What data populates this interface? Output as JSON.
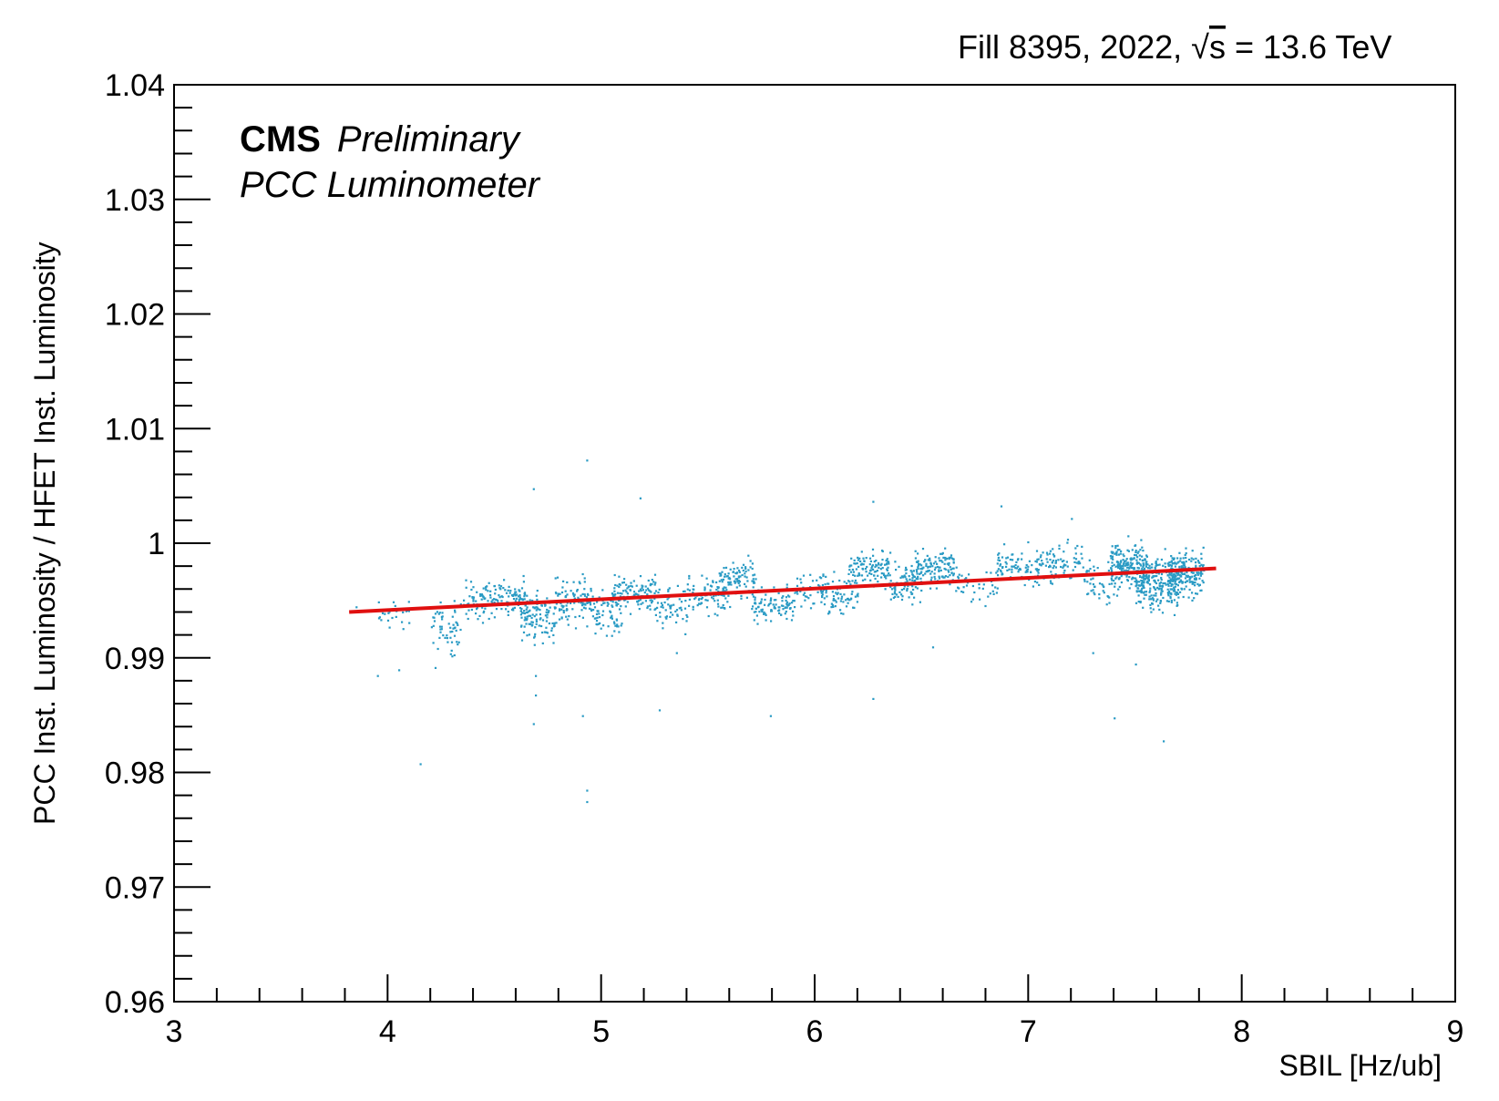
{
  "header": {
    "fill_text": "Fill 8395, 2022, ",
    "sqrt_symbol": "√",
    "sqrt_arg": "s",
    "energy_text": " = 13.6 TeV"
  },
  "annotation": {
    "experiment": "CMS",
    "status": "Preliminary",
    "detector": "PCC Luminometer"
  },
  "colors": {
    "scatter": "#2a9bc4",
    "fit": "#e01010",
    "frame": "#000000"
  },
  "chart_data": {
    "type": "scatter",
    "xlabel": "SBIL [Hz/ub]",
    "ylabel": "PCC Inst. Luminosity / HFET Inst. Luminosity",
    "xlim": [
      3,
      9
    ],
    "ylim": [
      0.96,
      1.04
    ],
    "xticks": [
      "3",
      "4",
      "5",
      "6",
      "7",
      "8",
      "9"
    ],
    "yticks": [
      "0.96",
      "0.97",
      "0.98",
      "0.99",
      "1",
      "1.01",
      "1.02",
      "1.03",
      "1.04"
    ],
    "grid": false,
    "series": [
      {
        "type": "scatter",
        "clusters": [
          {
            "x": [
              3.95,
              4.1
            ],
            "y_center": 0.9935,
            "y_spread": 0.0015,
            "n": 25
          },
          {
            "x": [
              4.2,
              4.35
            ],
            "y_center": 0.9925,
            "y_spread": 0.0025,
            "n": 55
          },
          {
            "x": [
              4.35,
              4.5
            ],
            "y_center": 0.995,
            "y_spread": 0.002,
            "n": 70
          },
          {
            "x": [
              4.5,
              4.65
            ],
            "y_center": 0.9955,
            "y_spread": 0.0018,
            "n": 80
          },
          {
            "x": [
              4.62,
              4.78
            ],
            "y_center": 0.9935,
            "y_spread": 0.0025,
            "n": 110
          },
          {
            "x": [
              4.78,
              4.95
            ],
            "y_center": 0.995,
            "y_spread": 0.0022,
            "n": 100
          },
          {
            "x": [
              4.95,
              5.1
            ],
            "y_center": 0.994,
            "y_spread": 0.002,
            "n": 70
          },
          {
            "x": [
              5.05,
              5.25
            ],
            "y_center": 0.9958,
            "y_spread": 0.0018,
            "n": 110
          },
          {
            "x": [
              5.25,
              5.4
            ],
            "y_center": 0.9945,
            "y_spread": 0.0018,
            "n": 60
          },
          {
            "x": [
              5.4,
              5.6
            ],
            "y_center": 0.9955,
            "y_spread": 0.0018,
            "n": 90
          },
          {
            "x": [
              5.55,
              5.72
            ],
            "y_center": 0.997,
            "y_spread": 0.0016,
            "n": 90
          },
          {
            "x": [
              5.7,
              5.9
            ],
            "y_center": 0.9948,
            "y_spread": 0.0018,
            "n": 100
          },
          {
            "x": [
              5.9,
              6.05
            ],
            "y_center": 0.996,
            "y_spread": 0.0016,
            "n": 60
          },
          {
            "x": [
              6.05,
              6.2
            ],
            "y_center": 0.9955,
            "y_spread": 0.0018,
            "n": 60
          },
          {
            "x": [
              6.15,
              6.35
            ],
            "y_center": 0.998,
            "y_spread": 0.0018,
            "n": 110
          },
          {
            "x": [
              6.35,
              6.5
            ],
            "y_center": 0.9965,
            "y_spread": 0.0018,
            "n": 80
          },
          {
            "x": [
              6.45,
              6.65
            ],
            "y_center": 0.998,
            "y_spread": 0.0018,
            "n": 130
          },
          {
            "x": [
              6.65,
              6.85
            ],
            "y_center": 0.9965,
            "y_spread": 0.002,
            "n": 40
          },
          {
            "x": [
              6.85,
              7.05
            ],
            "y_center": 0.998,
            "y_spread": 0.0018,
            "n": 90
          },
          {
            "x": [
              7.05,
              7.25
            ],
            "y_center": 0.9985,
            "y_spread": 0.0018,
            "n": 80
          },
          {
            "x": [
              7.25,
              7.4
            ],
            "y_center": 0.997,
            "y_spread": 0.0022,
            "n": 50
          },
          {
            "x": [
              7.38,
              7.55
            ],
            "y_center": 0.998,
            "y_spread": 0.0022,
            "n": 200
          },
          {
            "x": [
              7.5,
              7.7
            ],
            "y_center": 0.9965,
            "y_spread": 0.0025,
            "n": 240
          },
          {
            "x": [
              7.65,
              7.82
            ],
            "y_center": 0.9975,
            "y_spread": 0.0022,
            "n": 200
          }
        ],
        "outliers": [
          [
            3.85,
            0.9945
          ],
          [
            3.95,
            0.9885
          ],
          [
            4.15,
            0.9808
          ],
          [
            4.05,
            0.989
          ],
          [
            4.22,
            0.9892
          ],
          [
            4.68,
            1.0048
          ],
          [
            4.93,
            1.0073
          ],
          [
            5.18,
            1.004
          ],
          [
            4.69,
            0.9885
          ],
          [
            4.69,
            0.9868
          ],
          [
            4.68,
            0.9843
          ],
          [
            4.91,
            0.985
          ],
          [
            4.93,
            0.9785
          ],
          [
            4.93,
            0.9775
          ],
          [
            5.27,
            0.9855
          ],
          [
            5.79,
            0.985
          ],
          [
            6.27,
            0.9865
          ],
          [
            6.27,
            1.0037
          ],
          [
            6.87,
            1.0033
          ],
          [
            7.2,
            1.0022
          ],
          [
            7.4,
            0.9848
          ],
          [
            7.63,
            0.9828
          ],
          [
            7.3,
            0.9905
          ],
          [
            7.5,
            0.9895
          ],
          [
            6.55,
            0.991
          ],
          [
            5.35,
            0.9905
          ]
        ]
      },
      {
        "type": "line",
        "x": [
          3.82,
          7.88
        ],
        "y": [
          0.994,
          0.9978
        ]
      }
    ]
  }
}
